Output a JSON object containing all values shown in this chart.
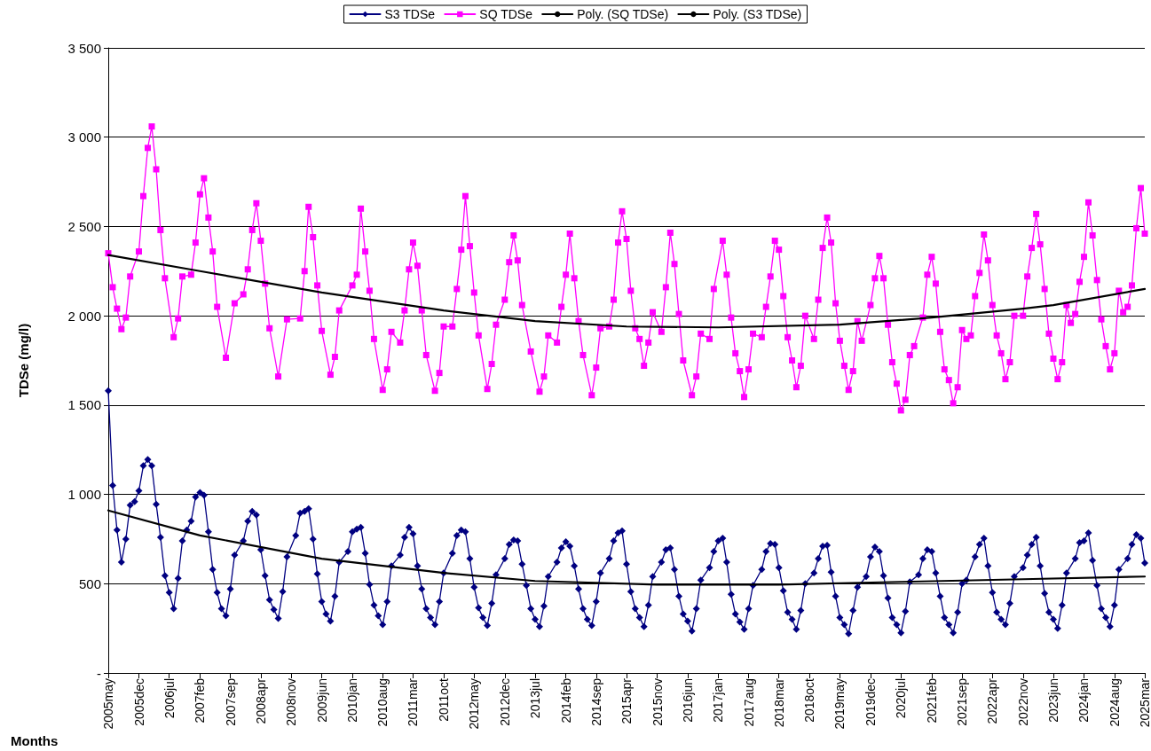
{
  "chart_data": {
    "type": "line",
    "xlabel": "Months",
    "ylabel": "TDSe (mg/l)",
    "xlim": [
      "2005-05",
      "2025-03"
    ],
    "xticks": [
      {
        "value": "2005-05",
        "label": "2005may"
      },
      {
        "value": "2005-12",
        "label": "2005dec"
      },
      {
        "value": "2006-07",
        "label": "2006jul"
      },
      {
        "value": "2007-02",
        "label": "2007feb"
      },
      {
        "value": "2007-09",
        "label": "2007sep"
      },
      {
        "value": "2008-04",
        "label": "2008apr"
      },
      {
        "value": "2008-11",
        "label": "2008nov"
      },
      {
        "value": "2009-06",
        "label": "2009jun"
      },
      {
        "value": "2010-01",
        "label": "2010jan"
      },
      {
        "value": "2010-08",
        "label": "2010aug"
      },
      {
        "value": "2011-03",
        "label": "2011mar"
      },
      {
        "value": "2011-10",
        "label": "2011oct"
      },
      {
        "value": "2012-05",
        "label": "2012may"
      },
      {
        "value": "2012-12",
        "label": "2012dec"
      },
      {
        "value": "2013-07",
        "label": "2013jul"
      },
      {
        "value": "2014-02",
        "label": "2014feb"
      },
      {
        "value": "2014-09",
        "label": "2014sep"
      },
      {
        "value": "2015-04",
        "label": "2015apr"
      },
      {
        "value": "2015-11",
        "label": "2015nov"
      },
      {
        "value": "2016-06",
        "label": "2016jun"
      },
      {
        "value": "2017-01",
        "label": "2017jan"
      },
      {
        "value": "2017-08",
        "label": "2017aug"
      },
      {
        "value": "2018-03",
        "label": "2018mar"
      },
      {
        "value": "2018-10",
        "label": "2018oct"
      },
      {
        "value": "2019-05",
        "label": "2019may"
      },
      {
        "value": "2019-12",
        "label": "2019dec"
      },
      {
        "value": "2020-07",
        "label": "2020jul"
      },
      {
        "value": "2021-02",
        "label": "2021feb"
      },
      {
        "value": "2021-09",
        "label": "2021sep"
      },
      {
        "value": "2022-04",
        "label": "2022apr"
      },
      {
        "value": "2022-11",
        "label": "2022nov"
      },
      {
        "value": "2023-06",
        "label": "2023jun"
      },
      {
        "value": "2024-01",
        "label": "2024jan"
      },
      {
        "value": "2024-08",
        "label": "2024aug"
      },
      {
        "value": "2025-03",
        "label": "2025mar"
      }
    ],
    "ylim": [
      0,
      3500
    ],
    "yticks": [
      {
        "value": 0,
        "label": "-"
      },
      500,
      {
        "value": 1000,
        "label": "1 000"
      },
      {
        "value": 1500,
        "label": "1 500"
      },
      {
        "value": 2000,
        "label": "2 000"
      },
      {
        "value": 2500,
        "label": "2 500"
      },
      {
        "value": 3000,
        "label": "3 000"
      },
      {
        "value": 3500,
        "label": "3 500"
      }
    ],
    "grid": "y",
    "legend": "top",
    "line_style": "solid",
    "series": [
      {
        "name": "S3 TDSe",
        "color": "#000080",
        "marker": "diamond",
        "x": [
          "2005-05",
          "2005-06",
          "2005-07",
          "2005-08",
          "2005-09",
          "2005-10",
          "2005-11",
          "2005-12",
          "2006-01",
          "2006-02",
          "2006-03",
          "2006-04",
          "2006-05",
          "2006-06",
          "2006-07",
          "2006-08",
          "2006-09",
          "2006-10",
          "2006-11",
          "2006-12",
          "2007-01",
          "2007-02",
          "2007-03",
          "2007-04",
          "2007-05",
          "2007-06",
          "2007-07",
          "2007-08",
          "2007-09",
          "2007-10",
          "2007-12",
          "2008-01",
          "2008-02",
          "2008-03",
          "2008-04",
          "2008-05",
          "2008-06",
          "2008-07",
          "2008-08",
          "2008-09",
          "2008-10",
          "2008-12",
          "2009-01",
          "2009-02",
          "2009-03",
          "2009-04",
          "2009-05",
          "2009-06",
          "2009-07",
          "2009-08",
          "2009-09",
          "2009-10",
          "2009-12",
          "2010-01",
          "2010-02",
          "2010-03",
          "2010-04",
          "2010-05",
          "2010-06",
          "2010-07",
          "2010-08",
          "2010-09",
          "2010-10",
          "2010-12",
          "2011-01",
          "2011-02",
          "2011-03",
          "2011-04",
          "2011-05",
          "2011-06",
          "2011-07",
          "2011-08",
          "2011-09",
          "2011-10",
          "2011-12",
          "2012-01",
          "2012-02",
          "2012-03",
          "2012-04",
          "2012-05",
          "2012-06",
          "2012-07",
          "2012-08",
          "2012-09",
          "2012-10",
          "2012-12",
          "2013-01",
          "2013-02",
          "2013-03",
          "2013-04",
          "2013-05",
          "2013-06",
          "2013-07",
          "2013-08",
          "2013-09",
          "2013-10",
          "2013-12",
          "2014-01",
          "2014-02",
          "2014-03",
          "2014-04",
          "2014-05",
          "2014-06",
          "2014-07",
          "2014-08",
          "2014-09",
          "2014-10",
          "2014-12",
          "2015-01",
          "2015-02",
          "2015-03",
          "2015-04",
          "2015-05",
          "2015-06",
          "2015-07",
          "2015-08",
          "2015-09",
          "2015-10",
          "2015-12",
          "2016-01",
          "2016-02",
          "2016-03",
          "2016-04",
          "2016-05",
          "2016-06",
          "2016-07",
          "2016-08",
          "2016-09",
          "2016-11",
          "2016-12",
          "2017-01",
          "2017-02",
          "2017-03",
          "2017-04",
          "2017-05",
          "2017-06",
          "2017-07",
          "2017-08",
          "2017-09",
          "2017-11",
          "2017-12",
          "2018-01",
          "2018-02",
          "2018-03",
          "2018-04",
          "2018-05",
          "2018-06",
          "2018-07",
          "2018-08",
          "2018-09",
          "2018-11",
          "2018-12",
          "2019-01",
          "2019-02",
          "2019-03",
          "2019-04",
          "2019-05",
          "2019-06",
          "2019-07",
          "2019-08",
          "2019-09",
          "2019-11",
          "2019-12",
          "2020-01",
          "2020-02",
          "2020-03",
          "2020-04",
          "2020-05",
          "2020-06",
          "2020-07",
          "2020-08",
          "2020-09",
          "2020-11",
          "2020-12",
          "2021-01",
          "2021-02",
          "2021-03",
          "2021-04",
          "2021-05",
          "2021-06",
          "2021-07",
          "2021-08",
          "2021-09",
          "2021-10",
          "2021-12",
          "2022-01",
          "2022-02",
          "2022-03",
          "2022-04",
          "2022-05",
          "2022-06",
          "2022-07",
          "2022-08",
          "2022-09",
          "2022-11",
          "2022-12",
          "2023-01",
          "2023-02",
          "2023-03",
          "2023-04",
          "2023-05",
          "2023-06",
          "2023-07",
          "2023-08",
          "2023-09",
          "2023-11",
          "2023-12",
          "2024-01",
          "2024-02",
          "2024-03",
          "2024-04",
          "2024-05",
          "2024-06",
          "2024-07",
          "2024-08",
          "2024-09",
          "2024-11",
          "2024-12",
          "2025-01",
          "2025-02",
          "2025-03"
        ],
        "values": [
          1580,
          1050,
          800,
          620,
          750,
          940,
          960,
          1020,
          1160,
          1195,
          1160,
          945,
          760,
          545,
          450,
          360,
          530,
          740,
          800,
          850,
          985,
          1010,
          995,
          790,
          580,
          450,
          360,
          320,
          470,
          660,
          740,
          850,
          905,
          885,
          690,
          545,
          410,
          355,
          305,
          455,
          650,
          770,
          895,
          905,
          920,
          750,
          555,
          400,
          330,
          290,
          430,
          620,
          680,
          790,
          805,
          815,
          670,
          495,
          380,
          320,
          270,
          400,
          600,
          660,
          760,
          815,
          780,
          600,
          470,
          360,
          310,
          270,
          400,
          560,
          670,
          770,
          800,
          790,
          640,
          480,
          365,
          310,
          265,
          390,
          550,
          640,
          720,
          745,
          740,
          610,
          490,
          360,
          300,
          260,
          375,
          540,
          620,
          700,
          735,
          710,
          600,
          470,
          360,
          300,
          265,
          400,
          560,
          640,
          740,
          785,
          795,
          610,
          455,
          360,
          310,
          260,
          380,
          540,
          620,
          690,
          700,
          580,
          430,
          330,
          290,
          235,
          360,
          520,
          590,
          680,
          740,
          755,
          620,
          440,
          330,
          285,
          245,
          360,
          490,
          580,
          680,
          725,
          720,
          590,
          460,
          340,
          300,
          245,
          350,
          500,
          560,
          640,
          710,
          715,
          565,
          430,
          310,
          270,
          220,
          350,
          480,
          540,
          650,
          705,
          680,
          545,
          420,
          310,
          270,
          225,
          345,
          510,
          550,
          640,
          690,
          680,
          560,
          430,
          310,
          270,
          225,
          340,
          500,
          520,
          650,
          720,
          755,
          600,
          450,
          340,
          300,
          270,
          390,
          540,
          590,
          660,
          720,
          760,
          600,
          445,
          340,
          300,
          250,
          380,
          560,
          640,
          730,
          740,
          785,
          630,
          490,
          360,
          310,
          260,
          380,
          580,
          640,
          720,
          775,
          755,
          615
        ]
      },
      {
        "name": "SQ TDSe",
        "color": "#ff00ff",
        "marker": "square",
        "x": [
          "2005-05",
          "2005-06",
          "2005-07",
          "2005-08",
          "2005-09",
          "2005-10",
          "2005-12",
          "2006-01",
          "2006-02",
          "2006-03",
          "2006-04",
          "2006-05",
          "2006-06",
          "2006-08",
          "2006-09",
          "2006-10",
          "2006-12",
          "2007-01",
          "2007-02",
          "2007-03",
          "2007-04",
          "2007-05",
          "2007-06",
          "2007-08",
          "2007-10",
          "2007-12",
          "2008-01",
          "2008-02",
          "2008-03",
          "2008-04",
          "2008-05",
          "2008-06",
          "2008-08",
          "2008-10",
          "2009-01",
          "2009-02",
          "2009-03",
          "2009-04",
          "2009-05",
          "2009-06",
          "2009-08",
          "2009-09",
          "2009-10",
          "2010-01",
          "2010-02",
          "2010-03",
          "2010-04",
          "2010-05",
          "2010-06",
          "2010-08",
          "2010-09",
          "2010-10",
          "2010-12",
          "2011-01",
          "2011-02",
          "2011-03",
          "2011-04",
          "2011-05",
          "2011-06",
          "2011-08",
          "2011-09",
          "2011-10",
          "2011-12",
          "2012-01",
          "2012-02",
          "2012-03",
          "2012-04",
          "2012-05",
          "2012-06",
          "2012-08",
          "2012-09",
          "2012-10",
          "2012-12",
          "2013-01",
          "2013-02",
          "2013-03",
          "2013-04",
          "2013-06",
          "2013-08",
          "2013-09",
          "2013-10",
          "2013-12",
          "2014-01",
          "2014-02",
          "2014-03",
          "2014-04",
          "2014-05",
          "2014-06",
          "2014-08",
          "2014-09",
          "2014-10",
          "2014-12",
          "2015-01",
          "2015-02",
          "2015-03",
          "2015-04",
          "2015-05",
          "2015-06",
          "2015-07",
          "2015-08",
          "2015-09",
          "2015-10",
          "2015-12",
          "2016-01",
          "2016-02",
          "2016-03",
          "2016-04",
          "2016-05",
          "2016-07",
          "2016-08",
          "2016-09",
          "2016-11",
          "2016-12",
          "2017-02",
          "2017-03",
          "2017-04",
          "2017-05",
          "2017-06",
          "2017-07",
          "2017-08",
          "2017-09",
          "2017-11",
          "2017-12",
          "2018-01",
          "2018-02",
          "2018-03",
          "2018-04",
          "2018-05",
          "2018-06",
          "2018-07",
          "2018-08",
          "2018-09",
          "2018-11",
          "2018-12",
          "2019-01",
          "2019-02",
          "2019-03",
          "2019-04",
          "2019-05",
          "2019-06",
          "2019-07",
          "2019-08",
          "2019-09",
          "2019-10",
          "2019-12",
          "2020-01",
          "2020-02",
          "2020-03",
          "2020-04",
          "2020-05",
          "2020-06",
          "2020-07",
          "2020-08",
          "2020-09",
          "2020-10",
          "2020-12",
          "2021-01",
          "2021-02",
          "2021-03",
          "2021-04",
          "2021-05",
          "2021-06",
          "2021-07",
          "2021-08",
          "2021-09",
          "2021-10",
          "2021-11",
          "2021-12",
          "2022-01",
          "2022-02",
          "2022-03",
          "2022-04",
          "2022-05",
          "2022-06",
          "2022-07",
          "2022-08",
          "2022-09",
          "2022-11",
          "2022-12",
          "2023-01",
          "2023-02",
          "2023-03",
          "2023-04",
          "2023-05",
          "2023-06",
          "2023-07",
          "2023-08",
          "2023-09",
          "2023-10",
          "2023-11",
          "2023-12",
          "2024-01",
          "2024-02",
          "2024-03",
          "2024-04",
          "2024-05",
          "2024-06",
          "2024-07",
          "2024-08",
          "2024-09",
          "2024-10",
          "2024-11",
          "2024-12",
          "2025-01",
          "2025-02",
          "2025-03"
        ],
        "values": [
          2350,
          2160,
          2040,
          1925,
          1990,
          2220,
          2360,
          2670,
          2940,
          3060,
          2820,
          2480,
          2210,
          1880,
          1985,
          2220,
          2230,
          2410,
          2680,
          2770,
          2550,
          2360,
          2050,
          1765,
          2070,
          2120,
          2260,
          2480,
          2630,
          2420,
          2180,
          1930,
          1660,
          1980,
          1985,
          2250,
          2610,
          2440,
          2170,
          1915,
          1670,
          1770,
          2030,
          2170,
          2230,
          2600,
          2360,
          2140,
          1870,
          1585,
          1700,
          1910,
          1850,
          2030,
          2260,
          2410,
          2280,
          2030,
          1780,
          1580,
          1680,
          1940,
          1940,
          2150,
          2370,
          2670,
          2390,
          2130,
          1890,
          1590,
          1730,
          1950,
          2090,
          2300,
          2450,
          2310,
          2060,
          1800,
          1575,
          1660,
          1890,
          1850,
          2050,
          2230,
          2460,
          2210,
          1970,
          1780,
          1555,
          1710,
          1930,
          1940,
          2090,
          2410,
          2585,
          2430,
          2140,
          1930,
          1870,
          1720,
          1850,
          2020,
          1910,
          2160,
          2465,
          2290,
          2010,
          1750,
          1555,
          1660,
          1900,
          1870,
          2150,
          2420,
          2230,
          1990,
          1790,
          1690,
          1545,
          1700,
          1900,
          1880,
          2050,
          2220,
          2420,
          2370,
          2110,
          1880,
          1750,
          1600,
          1720,
          2000,
          1870,
          2090,
          2380,
          2550,
          2410,
          2070,
          1860,
          1720,
          1585,
          1690,
          1970,
          1860,
          2060,
          2210,
          2335,
          2210,
          1950,
          1740,
          1620,
          1470,
          1530,
          1780,
          1830,
          1990,
          2230,
          2330,
          2180,
          1910,
          1700,
          1640,
          1510,
          1600,
          1920,
          1870,
          1890,
          2110,
          2240,
          2455,
          2310,
          2060,
          1890,
          1790,
          1645,
          1740,
          2000,
          2000,
          2220,
          2380,
          2570,
          2400,
          2150,
          1900,
          1760,
          1645,
          1740,
          2060,
          1960,
          2010,
          2190,
          2330,
          2635,
          2450,
          2200,
          1980,
          1830,
          1700,
          1790,
          2140,
          2020,
          2050,
          2170,
          2490,
          2715,
          2460
        ]
      },
      {
        "name": "Poly. (SQ TDSe)",
        "color": "#000000",
        "marker": "none",
        "x": [
          "2005-05",
          "2007-02",
          "2009-06",
          "2011-10",
          "2013-07",
          "2015-04",
          "2017-01",
          "2019-05",
          "2021-02",
          "2022-11",
          "2023-06",
          "2025-03"
        ],
        "values": [
          2340,
          2250,
          2130,
          2030,
          1970,
          1940,
          1935,
          1950,
          1990,
          2040,
          2060,
          2150
        ]
      },
      {
        "name": "Poly. (S3 TDSe)",
        "color": "#000000",
        "marker": "none",
        "x": [
          "2005-05",
          "2007-02",
          "2009-06",
          "2011-10",
          "2013-07",
          "2015-11",
          "2018-03",
          "2020-07",
          "2022-11",
          "2025-03"
        ],
        "values": [
          910,
          770,
          640,
          560,
          515,
          495,
          495,
          510,
          525,
          540
        ]
      }
    ]
  }
}
